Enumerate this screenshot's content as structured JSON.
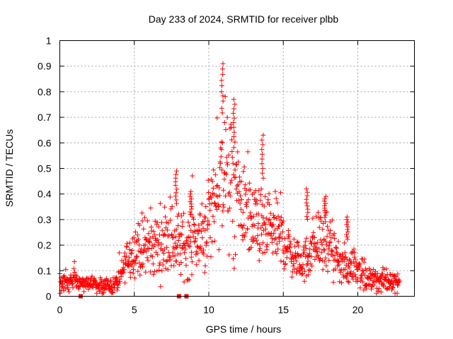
{
  "chart_data": {
    "type": "scatter",
    "title": "Day 233 of 2024, SRMTID for receiver plbb",
    "xlabel": "GPS time / hours",
    "ylabel": "SRMTID / TECUs",
    "xlim": [
      0,
      23.8
    ],
    "ylim": [
      0,
      1
    ],
    "x_ticks": [
      0,
      5,
      10,
      15,
      20
    ],
    "x_tick_labels": [
      "0",
      "5",
      "10",
      "15",
      "20"
    ],
    "y_ticks": [
      0,
      0.1,
      0.2,
      0.3,
      0.4,
      0.5,
      0.6,
      0.7,
      0.8,
      0.9,
      1
    ],
    "y_tick_labels": [
      "0",
      "0.1",
      "0.2",
      "0.3",
      "0.4",
      "0.5",
      "0.6",
      "0.7",
      "0.8",
      "0.9",
      "1"
    ],
    "grid": true,
    "marker": "+",
    "series_color": "#ff0000",
    "envelope": {
      "hours": [
        0,
        0.5,
        1,
        1.5,
        2,
        2.5,
        3,
        3.5,
        4,
        4.5,
        5,
        5.5,
        6,
        6.5,
        7,
        7.5,
        8,
        8.5,
        9,
        9.5,
        10,
        10.5,
        11,
        11.5,
        12,
        12.5,
        13,
        13.5,
        14,
        14.5,
        15,
        15.5,
        16,
        16.5,
        17,
        17.5,
        18,
        18.5,
        19,
        19.5,
        20,
        20.5,
        21,
        21.5,
        22,
        22.5,
        23
      ],
      "median": [
        0.06,
        0.06,
        0.06,
        0.05,
        0.05,
        0.04,
        0.04,
        0.04,
        0.06,
        0.15,
        0.18,
        0.19,
        0.19,
        0.2,
        0.22,
        0.22,
        0.2,
        0.2,
        0.22,
        0.22,
        0.3,
        0.4,
        0.5,
        0.42,
        0.38,
        0.33,
        0.28,
        0.26,
        0.25,
        0.26,
        0.22,
        0.17,
        0.13,
        0.14,
        0.2,
        0.22,
        0.2,
        0.15,
        0.11,
        0.12,
        0.12,
        0.06,
        0.06,
        0.06,
        0.06,
        0.06,
        0.06
      ],
      "spread": [
        0.03,
        0.03,
        0.03,
        0.02,
        0.02,
        0.02,
        0.02,
        0.02,
        0.03,
        0.05,
        0.07,
        0.08,
        0.08,
        0.09,
        0.1,
        0.1,
        0.09,
        0.09,
        0.1,
        0.1,
        0.12,
        0.16,
        0.2,
        0.18,
        0.15,
        0.12,
        0.1,
        0.09,
        0.08,
        0.09,
        0.08,
        0.06,
        0.05,
        0.06,
        0.08,
        0.09,
        0.08,
        0.06,
        0.05,
        0.05,
        0.05,
        0.03,
        0.03,
        0.03,
        0.03,
        0.03,
        0.03
      ],
      "x_end": 22.8,
      "step": 0.02
    },
    "spikes": [
      {
        "x": 7.8,
        "y": 0.49
      },
      {
        "x": 8.8,
        "y": 0.41
      },
      {
        "x": 10.9,
        "y": 0.91
      },
      {
        "x": 11.7,
        "y": 0.77
      },
      {
        "x": 13.6,
        "y": 0.63
      },
      {
        "x": 16.6,
        "y": 0.42
      },
      {
        "x": 17.8,
        "y": 0.39
      },
      {
        "x": 19.3,
        "y": 0.31
      }
    ],
    "outliers_at_zero": [
      1.4,
      8.0,
      8.5
    ]
  }
}
